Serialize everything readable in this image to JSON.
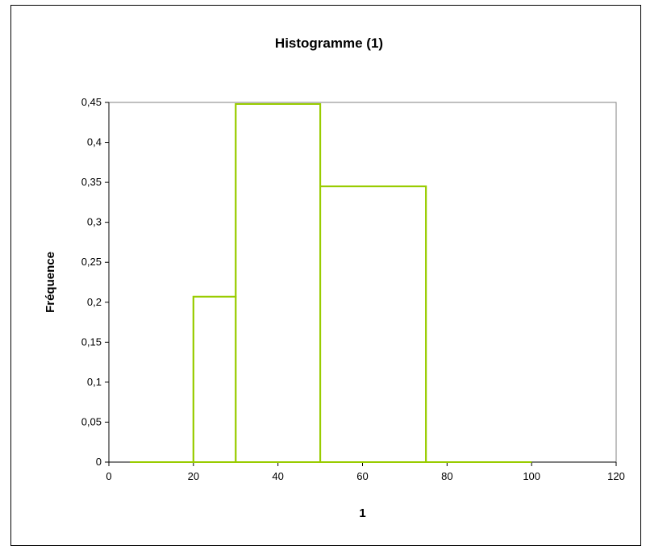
{
  "chart_data": {
    "type": "histogram",
    "title": "Histogramme (1)",
    "xlabel": "1",
    "ylabel": "Fréquence",
    "xlim": [
      0,
      120
    ],
    "ylim": [
      0,
      0.45
    ],
    "x_ticks": [
      0,
      20,
      40,
      60,
      80,
      100,
      120
    ],
    "x_tick_labels": [
      "0",
      "20",
      "40",
      "60",
      "80",
      "100",
      "120"
    ],
    "y_ticks": [
      0,
      0.05,
      0.1,
      0.15,
      0.2,
      0.25,
      0.3,
      0.35,
      0.4,
      0.45
    ],
    "y_tick_labels": [
      "0",
      "0,05",
      "0,1",
      "0,15",
      "0,2",
      "0,25",
      "0,3",
      "0,35",
      "0,4",
      "0,45"
    ],
    "bins": [
      {
        "from": 5,
        "to": 20,
        "value": 0
      },
      {
        "from": 20,
        "to": 30,
        "value": 0.207
      },
      {
        "from": 30,
        "to": 50,
        "value": 0.448
      },
      {
        "from": 50,
        "to": 75,
        "value": 0.345
      },
      {
        "from": 75,
        "to": 100,
        "value": 0
      }
    ],
    "grid": false,
    "legend": "none",
    "line_color": "#99cc00"
  }
}
